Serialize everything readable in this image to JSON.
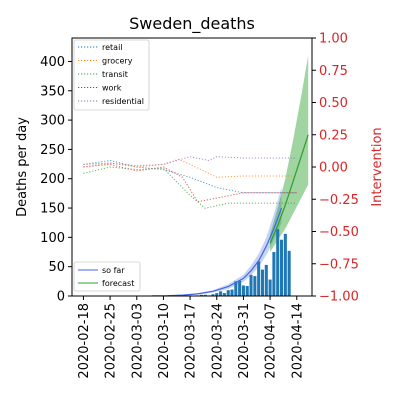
{
  "chart_data": {
    "type": "bar",
    "title": "Sweden_deaths",
    "ylabel": "Deaths per day",
    "ylabel_right": "Intervention",
    "ylim": [
      0,
      440
    ],
    "ylim_right": [
      -1.0,
      1.0
    ],
    "yticks": [
      0,
      50,
      100,
      150,
      200,
      250,
      300,
      350,
      400
    ],
    "yticks_right": [
      -1.0,
      -0.75,
      -0.5,
      -0.25,
      0.0,
      0.25,
      0.5,
      0.75,
      1.0
    ],
    "yticks_right_labels": [
      "−1.00",
      "−0.75",
      "−0.50",
      "−0.25",
      "0.00",
      "0.25",
      "0.50",
      "0.75",
      "1.00"
    ],
    "xlim_day": [
      -3,
      60
    ],
    "xticks": [
      {
        "day": 0,
        "label": "2020-02-18"
      },
      {
        "day": 7,
        "label": "2020-02-25"
      },
      {
        "day": 14,
        "label": "2020-03-03"
      },
      {
        "day": 21,
        "label": "2020-03-10"
      },
      {
        "day": 28,
        "label": "2020-03-17"
      },
      {
        "day": 35,
        "label": "2020-03-24"
      },
      {
        "day": 42,
        "label": "2020-03-31"
      },
      {
        "day": 49,
        "label": "2020-04-07"
      },
      {
        "day": 56,
        "label": "2020-04-14"
      }
    ],
    "bars": {
      "start_day": 25,
      "values": [
        1,
        0,
        1,
        1,
        0,
        1,
        2,
        2,
        1,
        3,
        5,
        8,
        5,
        10,
        11,
        25,
        26,
        18,
        17,
        36,
        34,
        59,
        45,
        53,
        28,
        75,
        114,
        96,
        106,
        77
      ]
    },
    "so_far": {
      "label": "so far",
      "color": "#4169e1",
      "days": [
        18,
        22,
        26,
        30,
        34,
        38,
        42,
        44,
        46,
        48,
        50,
        52
      ],
      "values": [
        0.2,
        0.5,
        1.5,
        3.5,
        8,
        16,
        30,
        43,
        60,
        85,
        115,
        150
      ],
      "lower": [
        0.1,
        0.3,
        1,
        2.5,
        6,
        12,
        24,
        35,
        50,
        70,
        95,
        125
      ],
      "upper": [
        0.3,
        0.8,
        2,
        5,
        10,
        20,
        36,
        52,
        72,
        100,
        140,
        185
      ]
    },
    "forecast": {
      "label": "forecast",
      "color": "#2ca02c",
      "days": [
        49,
        51,
        53,
        55,
        57,
        59
      ],
      "values": [
        90,
        120,
        155,
        195,
        235,
        275
      ],
      "lower": [
        75,
        95,
        115,
        140,
        165,
        190
      ],
      "upper": [
        105,
        150,
        200,
        265,
        335,
        410
      ]
    },
    "interventions": [
      {
        "name": "retail",
        "color": "#1f77b4",
        "points": [
          [
            0,
            0.02
          ],
          [
            7,
            0.05
          ],
          [
            14,
            0.0
          ],
          [
            21,
            -0.02
          ],
          [
            28,
            -0.08
          ],
          [
            35,
            -0.16
          ],
          [
            42,
            -0.2
          ],
          [
            49,
            -0.2
          ],
          [
            56,
            -0.2
          ]
        ]
      },
      {
        "name": "grocery",
        "color": "#ff7f0e",
        "points": [
          [
            0,
            0.0
          ],
          [
            7,
            0.03
          ],
          [
            14,
            0.0
          ],
          [
            21,
            0.02
          ],
          [
            25,
            0.06
          ],
          [
            28,
            0.02
          ],
          [
            35,
            -0.08
          ],
          [
            42,
            -0.07
          ],
          [
            49,
            -0.07
          ],
          [
            56,
            -0.07
          ]
        ]
      },
      {
        "name": "transit",
        "color": "#2ca02c",
        "points": [
          [
            0,
            -0.05
          ],
          [
            7,
            0.0
          ],
          [
            14,
            -0.02
          ],
          [
            21,
            -0.01
          ],
          [
            28,
            -0.22
          ],
          [
            32,
            -0.32
          ],
          [
            35,
            -0.3
          ],
          [
            38,
            -0.28
          ],
          [
            42,
            -0.28
          ],
          [
            49,
            -0.28
          ],
          [
            56,
            -0.28
          ]
        ]
      },
      {
        "name": "work",
        "color": "#d62728",
        "points": [
          [
            0,
            0.0
          ],
          [
            7,
            0.02
          ],
          [
            14,
            -0.03
          ],
          [
            21,
            0.0
          ],
          [
            26,
            -0.08
          ],
          [
            30,
            -0.27
          ],
          [
            35,
            -0.24
          ],
          [
            42,
            -0.2
          ],
          [
            49,
            -0.2
          ],
          [
            56,
            -0.2
          ]
        ]
      },
      {
        "name": "residential",
        "color": "#9467bd",
        "points": [
          [
            0,
            0.02
          ],
          [
            7,
            0.03
          ],
          [
            14,
            0.01
          ],
          [
            21,
            0.02
          ],
          [
            28,
            0.08
          ],
          [
            33,
            0.05
          ],
          [
            35,
            0.08
          ],
          [
            42,
            0.07
          ],
          [
            49,
            0.07
          ],
          [
            56,
            0.07
          ]
        ]
      }
    ],
    "legend_top_placement": "top-left",
    "legend_bottom_placement": "bottom-left"
  }
}
